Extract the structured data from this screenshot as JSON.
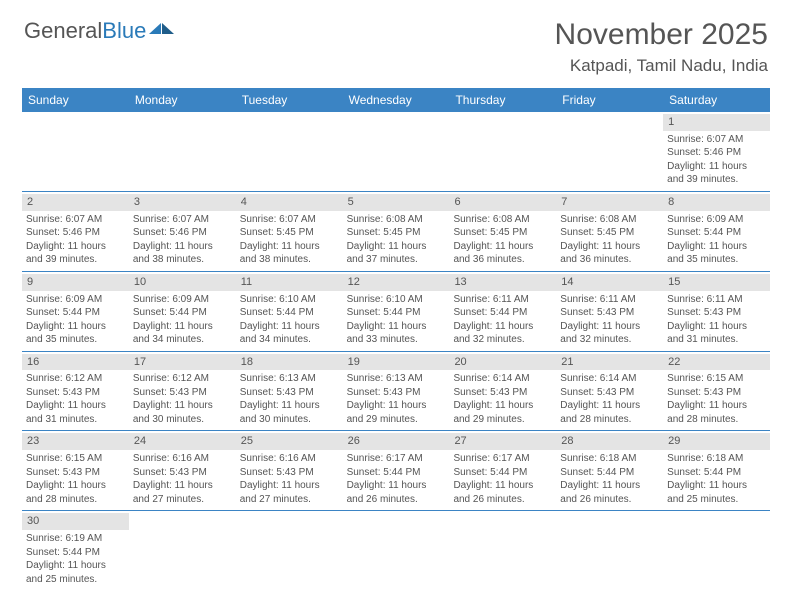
{
  "logo": {
    "text1": "General",
    "text2": "Blue"
  },
  "title": "November 2025",
  "location": "Katpadi, Tamil Nadu, India",
  "colors": {
    "header_bar": "#3b84c4",
    "daynum_bg": "#e4e4e4",
    "text": "#555555",
    "white": "#ffffff",
    "logo_blue": "#2a7ab8"
  },
  "weekdays": [
    "Sunday",
    "Monday",
    "Tuesday",
    "Wednesday",
    "Thursday",
    "Friday",
    "Saturday"
  ],
  "weeks": [
    [
      {
        "n": "",
        "l": []
      },
      {
        "n": "",
        "l": []
      },
      {
        "n": "",
        "l": []
      },
      {
        "n": "",
        "l": []
      },
      {
        "n": "",
        "l": []
      },
      {
        "n": "",
        "l": []
      },
      {
        "n": "1",
        "l": [
          "Sunrise: 6:07 AM",
          "Sunset: 5:46 PM",
          "Daylight: 11 hours",
          "and 39 minutes."
        ]
      }
    ],
    [
      {
        "n": "2",
        "l": [
          "Sunrise: 6:07 AM",
          "Sunset: 5:46 PM",
          "Daylight: 11 hours",
          "and 39 minutes."
        ]
      },
      {
        "n": "3",
        "l": [
          "Sunrise: 6:07 AM",
          "Sunset: 5:46 PM",
          "Daylight: 11 hours",
          "and 38 minutes."
        ]
      },
      {
        "n": "4",
        "l": [
          "Sunrise: 6:07 AM",
          "Sunset: 5:45 PM",
          "Daylight: 11 hours",
          "and 38 minutes."
        ]
      },
      {
        "n": "5",
        "l": [
          "Sunrise: 6:08 AM",
          "Sunset: 5:45 PM",
          "Daylight: 11 hours",
          "and 37 minutes."
        ]
      },
      {
        "n": "6",
        "l": [
          "Sunrise: 6:08 AM",
          "Sunset: 5:45 PM",
          "Daylight: 11 hours",
          "and 36 minutes."
        ]
      },
      {
        "n": "7",
        "l": [
          "Sunrise: 6:08 AM",
          "Sunset: 5:45 PM",
          "Daylight: 11 hours",
          "and 36 minutes."
        ]
      },
      {
        "n": "8",
        "l": [
          "Sunrise: 6:09 AM",
          "Sunset: 5:44 PM",
          "Daylight: 11 hours",
          "and 35 minutes."
        ]
      }
    ],
    [
      {
        "n": "9",
        "l": [
          "Sunrise: 6:09 AM",
          "Sunset: 5:44 PM",
          "Daylight: 11 hours",
          "and 35 minutes."
        ]
      },
      {
        "n": "10",
        "l": [
          "Sunrise: 6:09 AM",
          "Sunset: 5:44 PM",
          "Daylight: 11 hours",
          "and 34 minutes."
        ]
      },
      {
        "n": "11",
        "l": [
          "Sunrise: 6:10 AM",
          "Sunset: 5:44 PM",
          "Daylight: 11 hours",
          "and 34 minutes."
        ]
      },
      {
        "n": "12",
        "l": [
          "Sunrise: 6:10 AM",
          "Sunset: 5:44 PM",
          "Daylight: 11 hours",
          "and 33 minutes."
        ]
      },
      {
        "n": "13",
        "l": [
          "Sunrise: 6:11 AM",
          "Sunset: 5:44 PM",
          "Daylight: 11 hours",
          "and 32 minutes."
        ]
      },
      {
        "n": "14",
        "l": [
          "Sunrise: 6:11 AM",
          "Sunset: 5:43 PM",
          "Daylight: 11 hours",
          "and 32 minutes."
        ]
      },
      {
        "n": "15",
        "l": [
          "Sunrise: 6:11 AM",
          "Sunset: 5:43 PM",
          "Daylight: 11 hours",
          "and 31 minutes."
        ]
      }
    ],
    [
      {
        "n": "16",
        "l": [
          "Sunrise: 6:12 AM",
          "Sunset: 5:43 PM",
          "Daylight: 11 hours",
          "and 31 minutes."
        ]
      },
      {
        "n": "17",
        "l": [
          "Sunrise: 6:12 AM",
          "Sunset: 5:43 PM",
          "Daylight: 11 hours",
          "and 30 minutes."
        ]
      },
      {
        "n": "18",
        "l": [
          "Sunrise: 6:13 AM",
          "Sunset: 5:43 PM",
          "Daylight: 11 hours",
          "and 30 minutes."
        ]
      },
      {
        "n": "19",
        "l": [
          "Sunrise: 6:13 AM",
          "Sunset: 5:43 PM",
          "Daylight: 11 hours",
          "and 29 minutes."
        ]
      },
      {
        "n": "20",
        "l": [
          "Sunrise: 6:14 AM",
          "Sunset: 5:43 PM",
          "Daylight: 11 hours",
          "and 29 minutes."
        ]
      },
      {
        "n": "21",
        "l": [
          "Sunrise: 6:14 AM",
          "Sunset: 5:43 PM",
          "Daylight: 11 hours",
          "and 28 minutes."
        ]
      },
      {
        "n": "22",
        "l": [
          "Sunrise: 6:15 AM",
          "Sunset: 5:43 PM",
          "Daylight: 11 hours",
          "and 28 minutes."
        ]
      }
    ],
    [
      {
        "n": "23",
        "l": [
          "Sunrise: 6:15 AM",
          "Sunset: 5:43 PM",
          "Daylight: 11 hours",
          "and 28 minutes."
        ]
      },
      {
        "n": "24",
        "l": [
          "Sunrise: 6:16 AM",
          "Sunset: 5:43 PM",
          "Daylight: 11 hours",
          "and 27 minutes."
        ]
      },
      {
        "n": "25",
        "l": [
          "Sunrise: 6:16 AM",
          "Sunset: 5:43 PM",
          "Daylight: 11 hours",
          "and 27 minutes."
        ]
      },
      {
        "n": "26",
        "l": [
          "Sunrise: 6:17 AM",
          "Sunset: 5:44 PM",
          "Daylight: 11 hours",
          "and 26 minutes."
        ]
      },
      {
        "n": "27",
        "l": [
          "Sunrise: 6:17 AM",
          "Sunset: 5:44 PM",
          "Daylight: 11 hours",
          "and 26 minutes."
        ]
      },
      {
        "n": "28",
        "l": [
          "Sunrise: 6:18 AM",
          "Sunset: 5:44 PM",
          "Daylight: 11 hours",
          "and 26 minutes."
        ]
      },
      {
        "n": "29",
        "l": [
          "Sunrise: 6:18 AM",
          "Sunset: 5:44 PM",
          "Daylight: 11 hours",
          "and 25 minutes."
        ]
      }
    ],
    [
      {
        "n": "30",
        "l": [
          "Sunrise: 6:19 AM",
          "Sunset: 5:44 PM",
          "Daylight: 11 hours",
          "and 25 minutes."
        ]
      },
      {
        "n": "",
        "l": []
      },
      {
        "n": "",
        "l": []
      },
      {
        "n": "",
        "l": []
      },
      {
        "n": "",
        "l": []
      },
      {
        "n": "",
        "l": []
      },
      {
        "n": "",
        "l": []
      }
    ]
  ]
}
